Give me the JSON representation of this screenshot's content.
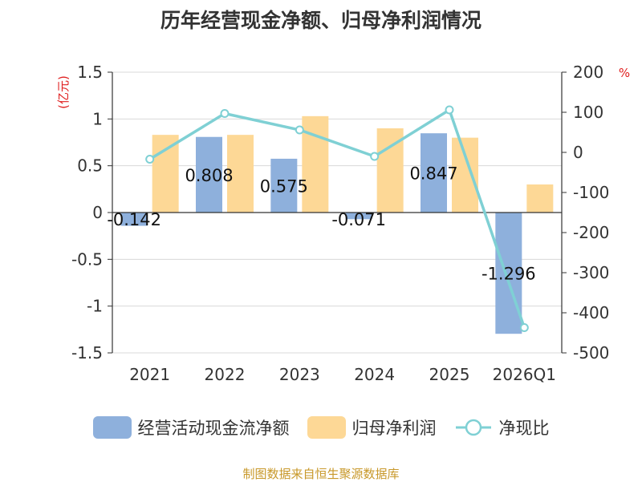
{
  "title": "历年经营现金净额、归母净利润情况",
  "source": "制图数据来自恒生聚源数据库",
  "chart_data": {
    "type": "bar",
    "categories": [
      "2021",
      "2022",
      "2023",
      "2024",
      "2025",
      "2026Q1"
    ],
    "series": [
      {
        "name": "经营活动现金流净额",
        "type": "bar",
        "axis": "left",
        "color": "#8eb0dc",
        "values": [
          -0.142,
          0.808,
          0.575,
          -0.071,
          0.847,
          -1.296
        ],
        "labels": [
          "-0.142",
          "0.808",
          "0.575",
          "-0.071",
          "0.847",
          "-1.296"
        ]
      },
      {
        "name": "归母净利润",
        "type": "bar",
        "axis": "left",
        "color": "#fdd896",
        "values": [
          0.83,
          0.83,
          1.03,
          0.9,
          0.8,
          0.3
        ]
      },
      {
        "name": "净现比",
        "type": "line",
        "axis": "right",
        "color": "#7fd0d4",
        "values": [
          -17,
          97,
          56,
          -10,
          106,
          -437
        ]
      }
    ],
    "y_left": {
      "unit": "(亿元)",
      "ylim": [
        -1.5,
        1.5
      ],
      "ticks": [
        "1.5",
        "1",
        "0.5",
        "0",
        "-0.5",
        "-1",
        "-1.5"
      ]
    },
    "y_right": {
      "unit": "%",
      "ylim": [
        -500,
        200
      ],
      "ticks": [
        "200",
        "100",
        "0",
        "-100",
        "-200",
        "-300",
        "-400",
        "-500"
      ]
    },
    "grid": true,
    "legend_position": "bottom"
  }
}
